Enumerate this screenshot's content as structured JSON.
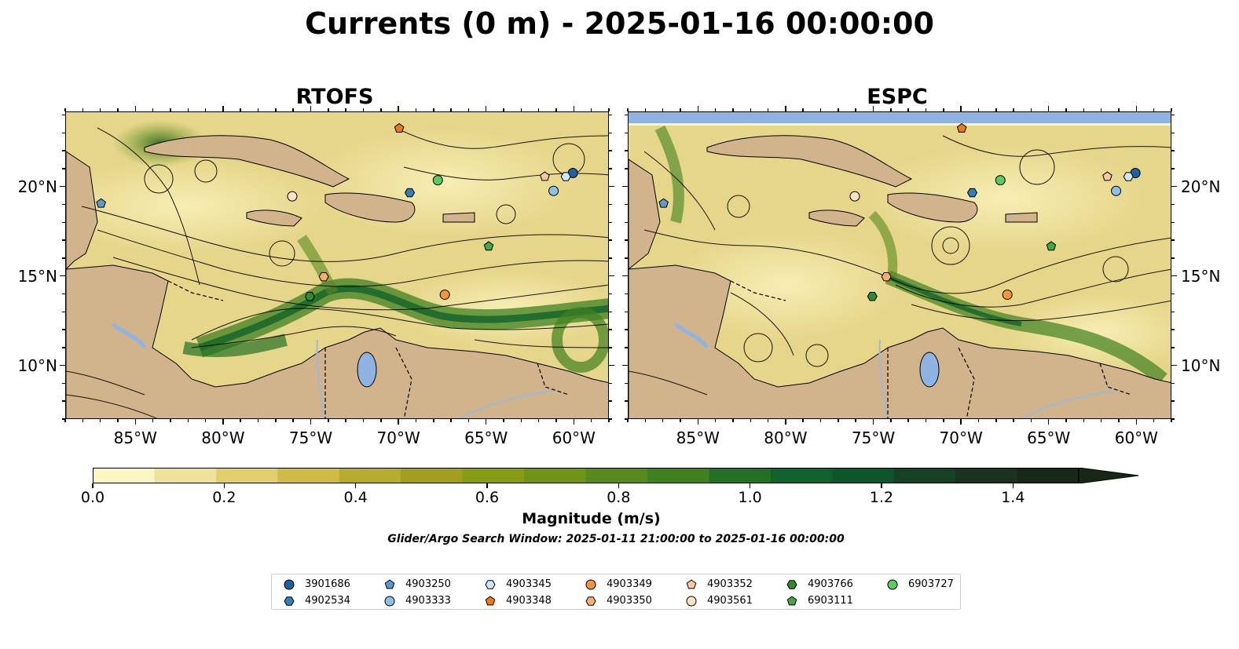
{
  "title": "Currents (0 m) - 2025-01-16 00:00:00",
  "panels": [
    {
      "title": "RTOFS"
    },
    {
      "title": "ESPC"
    }
  ],
  "axes": {
    "lon_range": [
      -89,
      -58
    ],
    "lat_range": [
      7,
      24.2
    ],
    "lon_ticks": [
      {
        "value": -85,
        "label": "85°W"
      },
      {
        "value": -80,
        "label": "80°W"
      },
      {
        "value": -75,
        "label": "75°W"
      },
      {
        "value": -70,
        "label": "70°W"
      },
      {
        "value": -65,
        "label": "65°W"
      },
      {
        "value": -60,
        "label": "60°W"
      }
    ],
    "lat_ticks": [
      {
        "value": 20,
        "label": "20°N"
      },
      {
        "value": 15,
        "label": "15°N"
      },
      {
        "value": 10,
        "label": "10°N"
      }
    ]
  },
  "colorbar": {
    "label": "Magnitude (m/s)",
    "min": 0,
    "max": 1.5,
    "extend": "max",
    "ticks": [
      {
        "value": 0.0,
        "label": "0.0"
      },
      {
        "value": 0.2,
        "label": "0.2"
      },
      {
        "value": 0.4,
        "label": "0.4"
      },
      {
        "value": 0.6,
        "label": "0.6"
      },
      {
        "value": 0.8,
        "label": "0.8"
      },
      {
        "value": 1.0,
        "label": "1.0"
      },
      {
        "value": 1.2,
        "label": "1.2"
      },
      {
        "value": 1.4,
        "label": "1.4"
      }
    ],
    "colors": [
      "#fdf6c3",
      "#efe39c",
      "#e0cf6c",
      "#cfbb45",
      "#b8ac2e",
      "#a09e1c",
      "#879b14",
      "#6e9317",
      "#58891c",
      "#3f801f",
      "#237025",
      "#10612b",
      "#0d552b",
      "#174127",
      "#1d3120",
      "#182818"
    ]
  },
  "search_window": "Glider/Argo Search Window: 2025-01-11 21:00:00 to 2025-01-16 00:00:00",
  "colors": {
    "land": "#d2b48c",
    "water_light": "#fdf6c3",
    "lake": "#8fb4e3"
  },
  "floats": [
    {
      "id": "3901686",
      "marker": "circle",
      "color": "#1f5fa3",
      "lon": -60.1,
      "lat": 20.8
    },
    {
      "id": "4902534",
      "marker": "hexagon",
      "color": "#2f7fbf",
      "lon": -69.4,
      "lat": 19.7
    },
    {
      "id": "4903250",
      "marker": "pentagon",
      "color": "#5b9ad5",
      "lon": -87.0,
      "lat": 19.1
    },
    {
      "id": "4903333",
      "marker": "circle",
      "color": "#8ec1ea",
      "lon": -61.2,
      "lat": 19.8
    },
    {
      "id": "4903345",
      "marker": "hexagon",
      "color": "#cfe6f7",
      "lon": -60.5,
      "lat": 20.6
    },
    {
      "id": "4903348",
      "marker": "pentagon",
      "color": "#f07a1a",
      "lon": -70.0,
      "lat": 23.3
    },
    {
      "id": "4903349",
      "marker": "circle",
      "color": "#f5963e",
      "lon": -67.4,
      "lat": 14.0
    },
    {
      "id": "4903350",
      "marker": "hexagon",
      "color": "#f7b072",
      "lon": -74.3,
      "lat": 15.0
    },
    {
      "id": "4903352",
      "marker": "pentagon",
      "color": "#f8c7a0",
      "lon": -61.7,
      "lat": 20.6
    },
    {
      "id": "4903561",
      "marker": "circle",
      "color": "#fde2c6",
      "lon": -76.1,
      "lat": 19.5
    },
    {
      "id": "4903766",
      "marker": "hexagon",
      "color": "#2e8b2e",
      "lon": -75.1,
      "lat": 13.9
    },
    {
      "id": "6903111",
      "marker": "pentagon",
      "color": "#3faa3f",
      "lon": -64.9,
      "lat": 16.7
    },
    {
      "id": "6903727",
      "marker": "circle",
      "color": "#5ccb5c",
      "lon": -67.8,
      "lat": 20.4
    }
  ]
}
